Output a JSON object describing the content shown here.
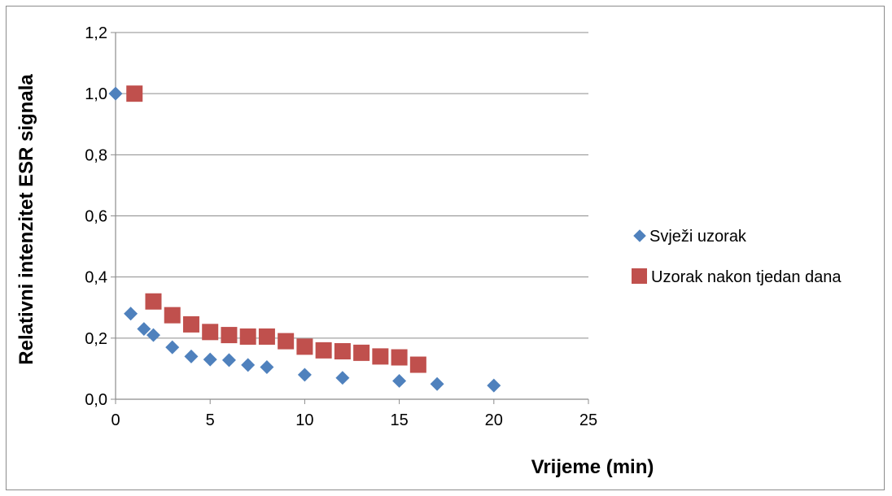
{
  "chart_data": {
    "type": "scatter",
    "title": "",
    "xlabel": "Vrijeme (min)",
    "ylabel": "Relativni intenzitet ESR signala",
    "xlim": [
      0,
      25
    ],
    "ylim": [
      0,
      1.2
    ],
    "xticks": [
      0,
      5,
      10,
      15,
      20,
      25
    ],
    "xtick_labels": [
      "0",
      "5",
      "10",
      "15",
      "20",
      "25"
    ],
    "yticks": [
      0,
      0.2,
      0.4,
      0.6,
      0.8,
      1.0,
      1.2
    ],
    "ytick_labels": [
      "0,0",
      "0,2",
      "0,4",
      "0,6",
      "0,8",
      "1,0",
      "1,2"
    ],
    "grid": "horizontal",
    "legend_position": "right",
    "series": [
      {
        "name": "Svježi uzorak",
        "marker": "diamond",
        "color": "#4f81bd",
        "points": [
          [
            0,
            1.0
          ],
          [
            0.8,
            0.28
          ],
          [
            1.5,
            0.23
          ],
          [
            2,
            0.21
          ],
          [
            3,
            0.17
          ],
          [
            4,
            0.14
          ],
          [
            5,
            0.13
          ],
          [
            6,
            0.128
          ],
          [
            7,
            0.112
          ],
          [
            8,
            0.105
          ],
          [
            10,
            0.08
          ],
          [
            12,
            0.07
          ],
          [
            15,
            0.06
          ],
          [
            17,
            0.05
          ],
          [
            20,
            0.045
          ]
        ]
      },
      {
        "name": "Uzorak nakon tjedan dana",
        "marker": "square",
        "color": "#c0504d",
        "points": [
          [
            1,
            1.0
          ],
          [
            2,
            0.32
          ],
          [
            3,
            0.275
          ],
          [
            4,
            0.245
          ],
          [
            5,
            0.22
          ],
          [
            6,
            0.21
          ],
          [
            7,
            0.205
          ],
          [
            8,
            0.205
          ],
          [
            9,
            0.19
          ],
          [
            10,
            0.172
          ],
          [
            11,
            0.16
          ],
          [
            12,
            0.157
          ],
          [
            13,
            0.152
          ],
          [
            14,
            0.14
          ],
          [
            15,
            0.137
          ],
          [
            16,
            0.113
          ]
        ]
      }
    ]
  }
}
